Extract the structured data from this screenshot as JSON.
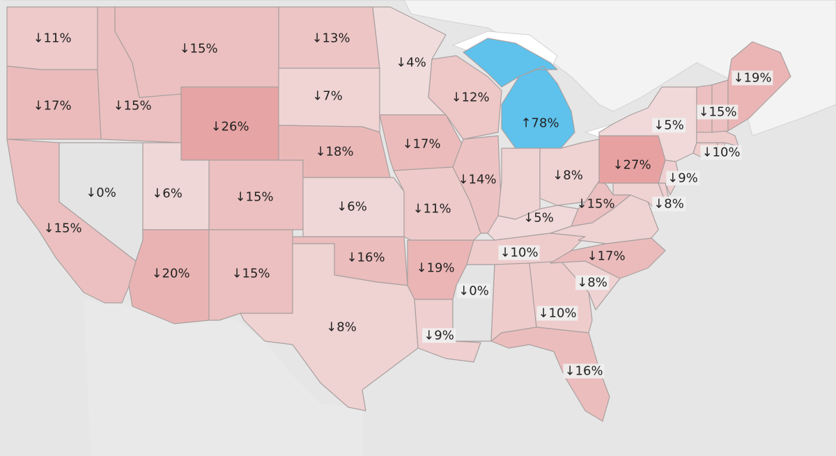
{
  "colors": {
    "background": "#e6e6e6",
    "canada": "#f3f3f3",
    "lakes": "#ffffff",
    "coast": "#d2d2d2",
    "decrease_light": "#f3e6e6",
    "decrease_dark": "#e7a1a1",
    "neutral": "#e4e4e4",
    "increase": "#5ec2ec"
  },
  "direction_symbols": {
    "down": "↓",
    "up": "↑"
  },
  "states": [
    {
      "id": "WA",
      "change": -11,
      "label": "11%"
    },
    {
      "id": "OR",
      "change": -17,
      "label": "17%"
    },
    {
      "id": "CA",
      "change": -15,
      "label": "15%"
    },
    {
      "id": "NV",
      "change": 0,
      "label": "0%"
    },
    {
      "id": "ID",
      "change": -15,
      "label": "15%"
    },
    {
      "id": "MT",
      "change": -15,
      "label": "15%"
    },
    {
      "id": "WY",
      "change": -26,
      "label": "26%"
    },
    {
      "id": "UT",
      "change": -6,
      "label": "6%"
    },
    {
      "id": "AZ",
      "change": -20,
      "label": "20%"
    },
    {
      "id": "CO",
      "change": -15,
      "label": "15%"
    },
    {
      "id": "NM",
      "change": -15,
      "label": "15%"
    },
    {
      "id": "ND",
      "change": -13,
      "label": "13%"
    },
    {
      "id": "SD",
      "change": -7,
      "label": "7%"
    },
    {
      "id": "NE",
      "change": -18,
      "label": "18%"
    },
    {
      "id": "KS",
      "change": -6,
      "label": "6%"
    },
    {
      "id": "OK",
      "change": -16,
      "label": "16%"
    },
    {
      "id": "TX",
      "change": -8,
      "label": "8%"
    },
    {
      "id": "MN",
      "change": -4,
      "label": "4%"
    },
    {
      "id": "IA",
      "change": -17,
      "label": "17%"
    },
    {
      "id": "MO",
      "change": -11,
      "label": "11%"
    },
    {
      "id": "AR",
      "change": -19,
      "label": "19%"
    },
    {
      "id": "LA",
      "change": -9,
      "label": "9%"
    },
    {
      "id": "WI",
      "change": -12,
      "label": "12%"
    },
    {
      "id": "IL",
      "change": -14,
      "label": "14%"
    },
    {
      "id": "MS",
      "change": 0,
      "label": "0%"
    },
    {
      "id": "MI",
      "change": 78,
      "label": "78%"
    },
    {
      "id": "IN",
      "change": -8,
      "label": ""
    },
    {
      "id": "OH",
      "change": -8,
      "label": "8%"
    },
    {
      "id": "KY",
      "change": -5,
      "label": "5%"
    },
    {
      "id": "TN",
      "change": -10,
      "label": "10%"
    },
    {
      "id": "AL",
      "change": -10,
      "label": ""
    },
    {
      "id": "GA",
      "change": -10,
      "label": "10%"
    },
    {
      "id": "FL",
      "change": -16,
      "label": "16%"
    },
    {
      "id": "SC",
      "change": -8,
      "label": "8%"
    },
    {
      "id": "NC",
      "change": -17,
      "label": "17%"
    },
    {
      "id": "VA",
      "change": -8,
      "label": ""
    },
    {
      "id": "WV",
      "change": -15,
      "label": "15%"
    },
    {
      "id": "MD",
      "change": -8,
      "label": "8%"
    },
    {
      "id": "DE",
      "change": -9,
      "label": ""
    },
    {
      "id": "NJ",
      "change": -9,
      "label": "9%"
    },
    {
      "id": "PA",
      "change": -27,
      "label": "27%"
    },
    {
      "id": "NY",
      "change": -5,
      "label": "5%"
    },
    {
      "id": "CT",
      "change": -10,
      "label": "10%"
    },
    {
      "id": "RI",
      "change": -10,
      "label": ""
    },
    {
      "id": "MA",
      "change": -10,
      "label": ""
    },
    {
      "id": "VT",
      "change": -15,
      "label": "15%"
    },
    {
      "id": "NH",
      "change": -15,
      "label": ""
    },
    {
      "id": "ME",
      "change": -19,
      "label": "19%"
    }
  ]
}
